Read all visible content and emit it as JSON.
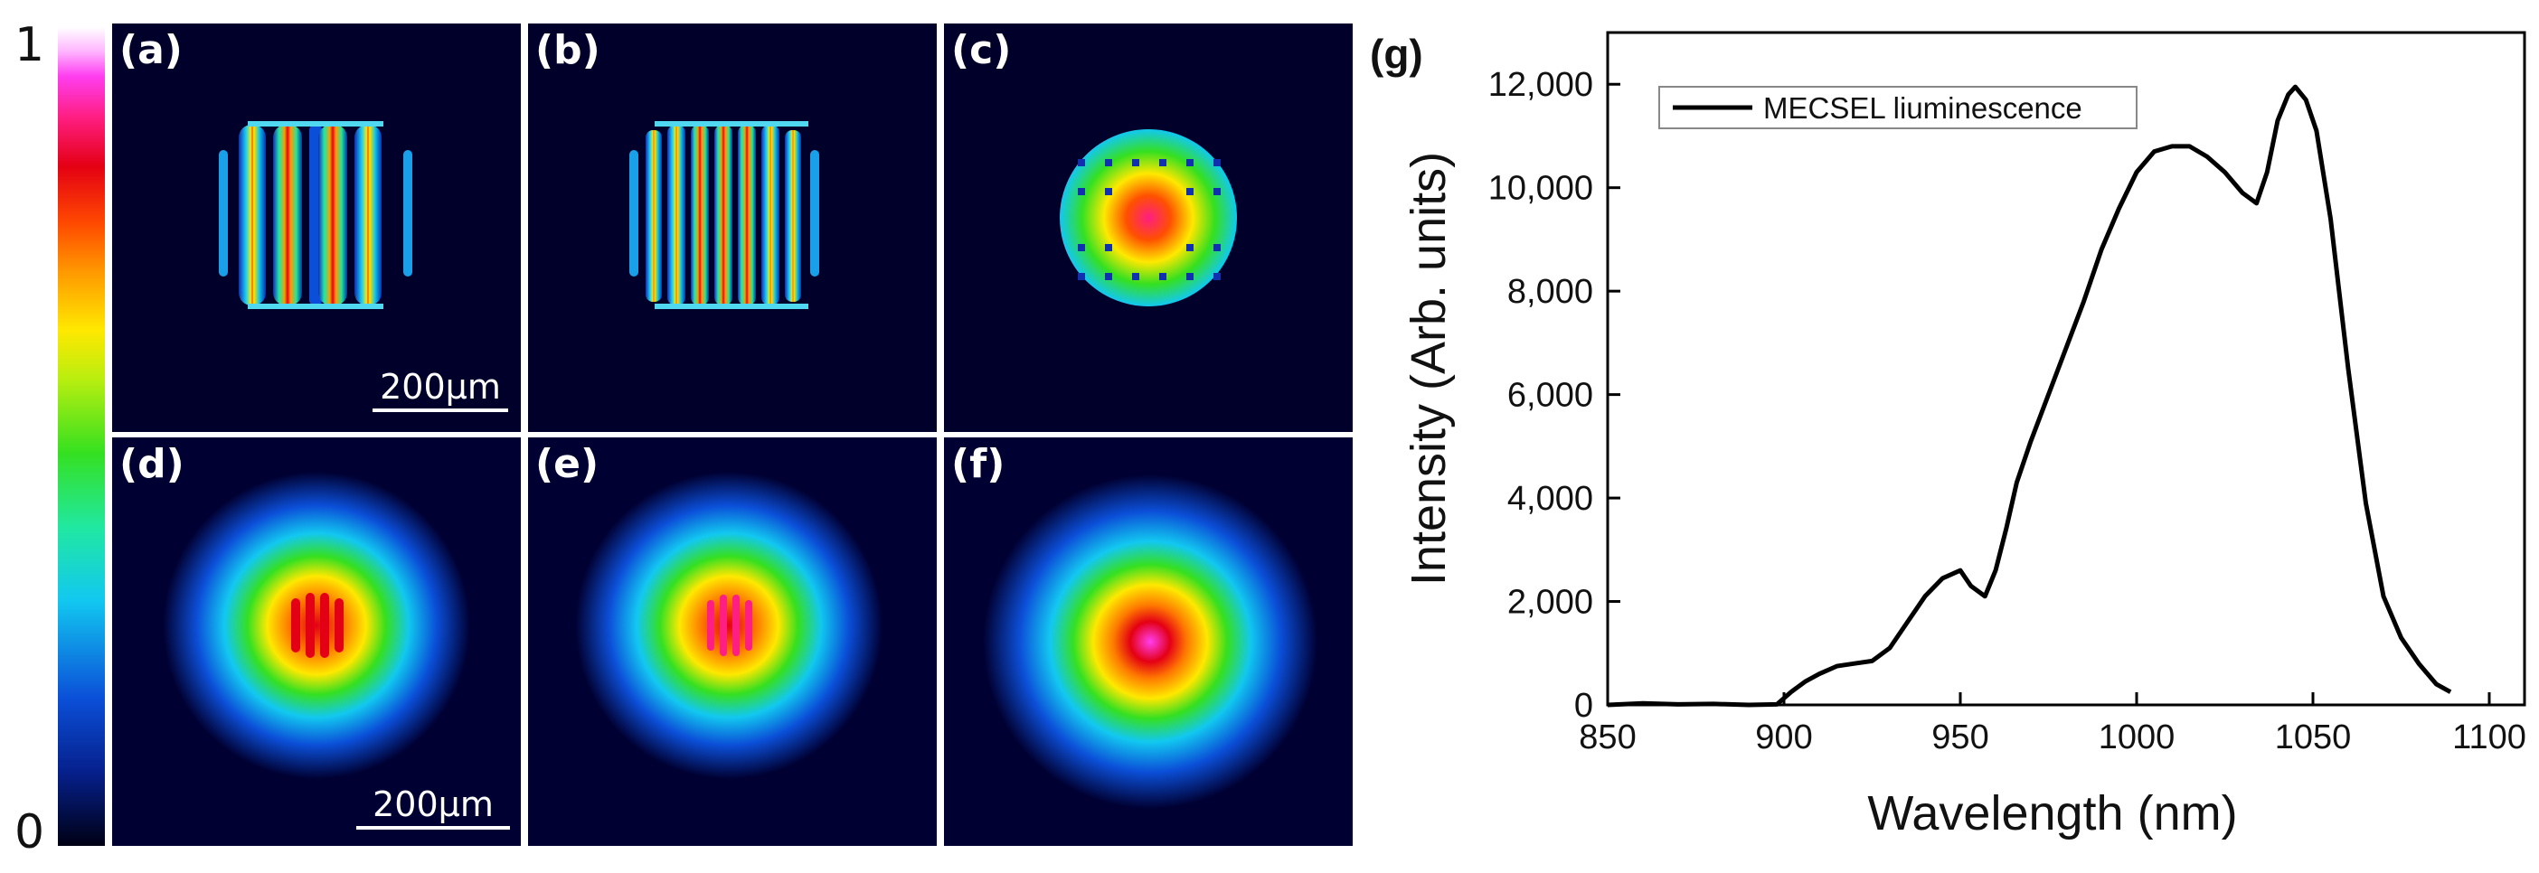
{
  "colorbar": {
    "max_label": "1",
    "min_label": "0"
  },
  "panels": [
    {
      "label": "(a)",
      "scale": "200μm"
    },
    {
      "label": "(b)"
    },
    {
      "label": "(c)"
    },
    {
      "label": "(d)",
      "scale": "200μm"
    },
    {
      "label": "(e)"
    },
    {
      "label": "(f)"
    }
  ],
  "chart_data": {
    "type": "line",
    "panel_label": "(g)",
    "xlabel": "Wavelength (nm)",
    "ylabel": "Intensity (Arb. units)",
    "xlim": [
      850,
      1110
    ],
    "ylim": [
      0,
      13000
    ],
    "xticks": [
      850,
      900,
      950,
      1000,
      1050,
      1100
    ],
    "yticks": [
      0,
      2000,
      4000,
      6000,
      8000,
      10000,
      12000
    ],
    "ytick_labels": [
      "0",
      "2,000",
      "4,000",
      "6,000",
      "8,000",
      "10,000",
      "12,000"
    ],
    "legend": "MECSEL liuminescence",
    "series": [
      {
        "name": "MECSEL liuminescence",
        "x": [
          850,
          860,
          870,
          880,
          890,
          898,
          902,
          906,
          910,
          915,
          920,
          925,
          930,
          935,
          940,
          945,
          950,
          953,
          957,
          960,
          963,
          966,
          970,
          975,
          980,
          985,
          990,
          995,
          1000,
          1005,
          1010,
          1015,
          1020,
          1025,
          1030,
          1034,
          1037,
          1040,
          1043,
          1045,
          1048,
          1051,
          1055,
          1060,
          1065,
          1070,
          1075,
          1080,
          1085,
          1089
        ],
        "y": [
          0,
          30,
          10,
          20,
          0,
          10,
          250,
          450,
          600,
          750,
          800,
          850,
          1100,
          1600,
          2100,
          2450,
          2600,
          2300,
          2100,
          2600,
          3400,
          4300,
          5100,
          6000,
          6900,
          7800,
          8800,
          9600,
          10300,
          10700,
          10800,
          10800,
          10600,
          10300,
          9900,
          9700,
          10300,
          11300,
          11800,
          11950,
          11700,
          11100,
          9400,
          6500,
          3900,
          2100,
          1300,
          800,
          400,
          250
        ]
      }
    ]
  }
}
